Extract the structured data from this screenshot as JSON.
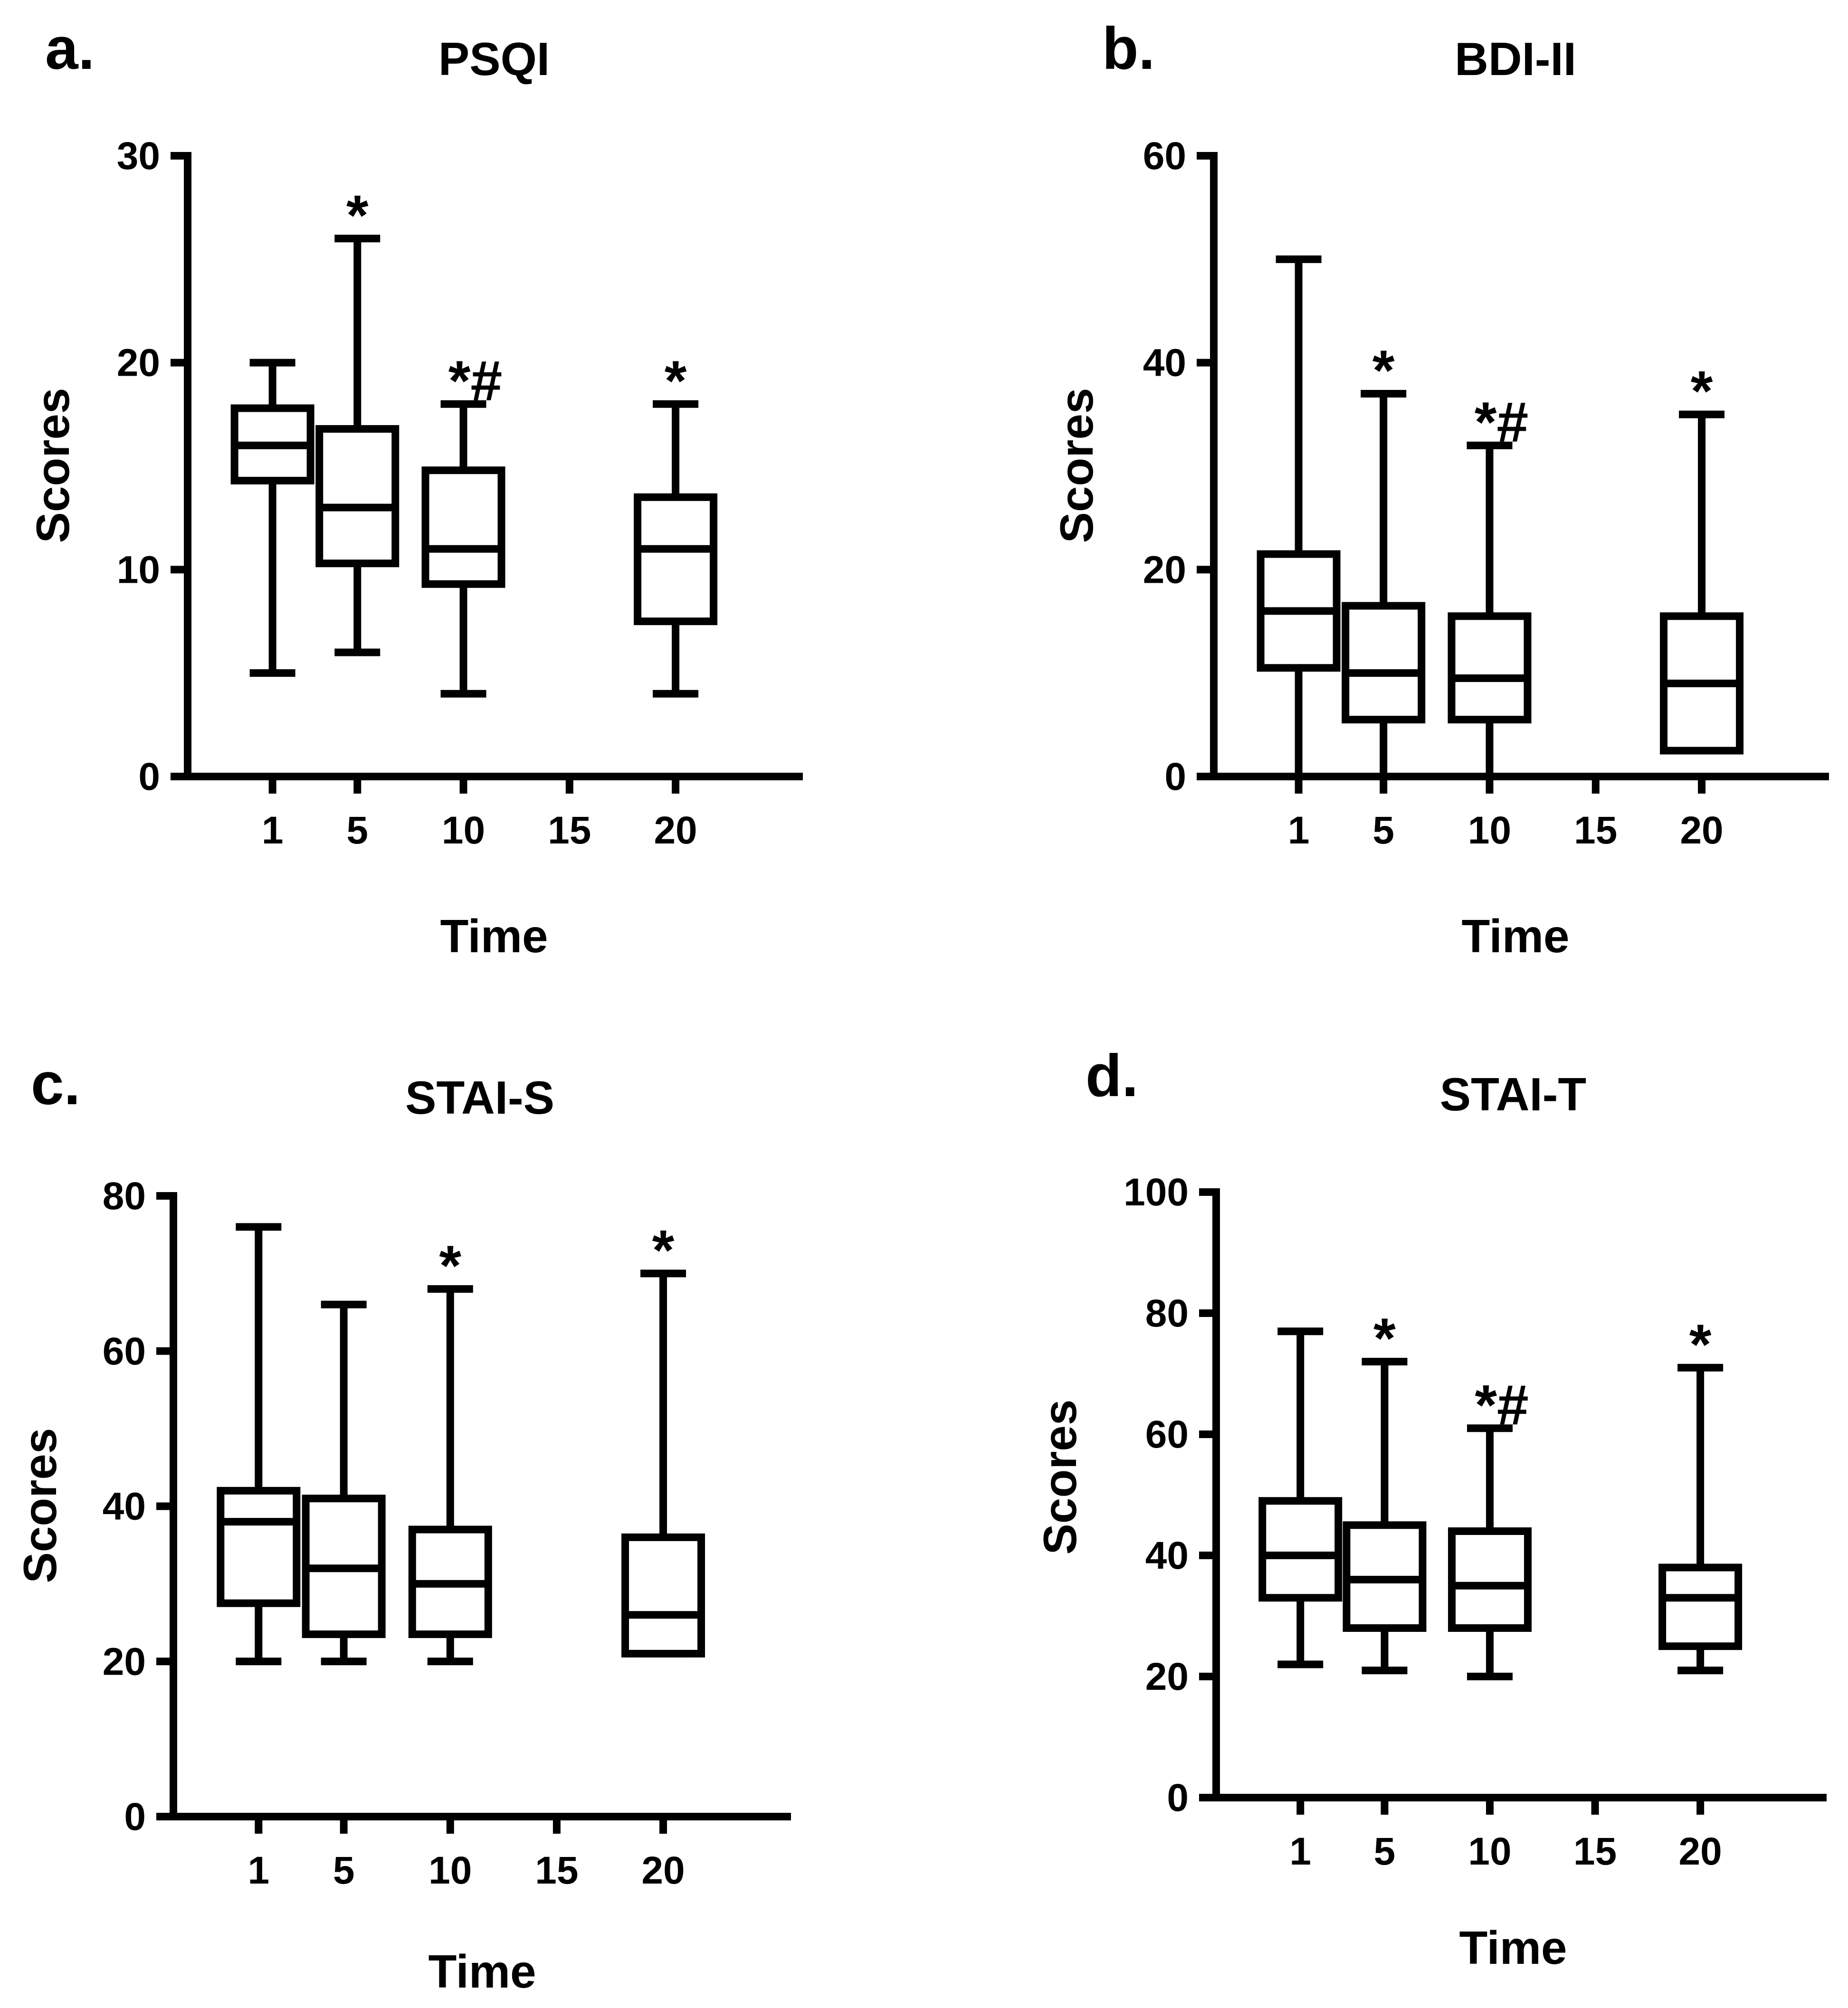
{
  "figure": {
    "description_id": "four-panel-boxplots"
  },
  "colors": {
    "ink": "#000000",
    "background": "#ffffff"
  },
  "chart_data": [
    {
      "panel": "a.",
      "type": "box",
      "title": "PSQI",
      "xlabel": "Time",
      "ylabel": "Scores",
      "xlim": [
        -3,
        26
      ],
      "ylim": [
        0,
        30
      ],
      "x_ticks": [
        1,
        5,
        10,
        15,
        20
      ],
      "y_ticks": [
        0,
        10,
        20,
        30
      ],
      "boxes": [
        {
          "x": 1,
          "min": 5,
          "q1": 14.3,
          "median": 16,
          "q3": 17.8,
          "max": 20,
          "mark": ""
        },
        {
          "x": 5,
          "min": 6,
          "q1": 10.3,
          "median": 13,
          "q3": 16.8,
          "max": 26,
          "mark": "*"
        },
        {
          "x": 10,
          "min": 4,
          "q1": 9.3,
          "median": 11,
          "q3": 14.8,
          "max": 18,
          "mark": "*#"
        },
        {
          "x": 20,
          "min": 4,
          "q1": 7.5,
          "median": 11,
          "q3": 13.5,
          "max": 18,
          "mark": "*"
        }
      ]
    },
    {
      "panel": "b.",
      "type": "box",
      "title": "BDI-II",
      "xlabel": "Time",
      "ylabel": "Scores",
      "xlim": [
        -3,
        26
      ],
      "ylim": [
        0,
        60
      ],
      "x_ticks": [
        1,
        5,
        10,
        15,
        20
      ],
      "y_ticks": [
        0,
        20,
        40,
        60
      ],
      "boxes": [
        {
          "x": 1,
          "min": 0,
          "q1": 10.5,
          "median": 16,
          "q3": 21.5,
          "max": 50,
          "mark": ""
        },
        {
          "x": 5,
          "min": 0,
          "q1": 5.5,
          "median": 10,
          "q3": 16.5,
          "max": 37,
          "mark": "*"
        },
        {
          "x": 10,
          "min": 0,
          "q1": 5.5,
          "median": 9.5,
          "q3": 15.5,
          "max": 32,
          "mark": "*#"
        },
        {
          "x": 20,
          "min": 2.5,
          "q1": 2.5,
          "median": 9,
          "q3": 15.5,
          "max": 35,
          "mark": "*"
        }
      ]
    },
    {
      "panel": "c.",
      "type": "box",
      "title": "STAI-S",
      "xlabel": "Time",
      "ylabel": "Scores",
      "xlim": [
        -3,
        26
      ],
      "ylim": [
        0,
        80
      ],
      "x_ticks": [
        1,
        5,
        10,
        15,
        20
      ],
      "y_ticks": [
        0,
        20,
        40,
        60,
        80
      ],
      "boxes": [
        {
          "x": 1,
          "min": 20,
          "q1": 27.5,
          "median": 38,
          "q3": 42,
          "max": 76,
          "mark": ""
        },
        {
          "x": 5,
          "min": 20,
          "q1": 23.5,
          "median": 32,
          "q3": 41,
          "max": 66,
          "mark": ""
        },
        {
          "x": 10,
          "min": 20,
          "q1": 23.5,
          "median": 30,
          "q3": 37,
          "max": 68,
          "mark": "*"
        },
        {
          "x": 20,
          "min": 21,
          "q1": 21,
          "median": 26,
          "q3": 36,
          "max": 70,
          "mark": "*"
        }
      ]
    },
    {
      "panel": "d.",
      "type": "box",
      "title": "STAI-T",
      "xlabel": "Time",
      "ylabel": "Scores",
      "xlim": [
        -3,
        26
      ],
      "ylim": [
        0,
        100
      ],
      "x_ticks": [
        1,
        5,
        10,
        15,
        20
      ],
      "y_ticks": [
        0,
        20,
        40,
        60,
        80,
        100
      ],
      "boxes": [
        {
          "x": 1,
          "min": 22,
          "q1": 33,
          "median": 40,
          "q3": 49,
          "max": 77,
          "mark": ""
        },
        {
          "x": 5,
          "min": 21,
          "q1": 28,
          "median": 36,
          "q3": 45,
          "max": 72,
          "mark": "*"
        },
        {
          "x": 10,
          "min": 20,
          "q1": 28,
          "median": 35,
          "q3": 44,
          "max": 61,
          "mark": "*#"
        },
        {
          "x": 20,
          "min": 21,
          "q1": 25,
          "median": 33,
          "q3": 38,
          "max": 71,
          "mark": "*"
        }
      ]
    }
  ]
}
